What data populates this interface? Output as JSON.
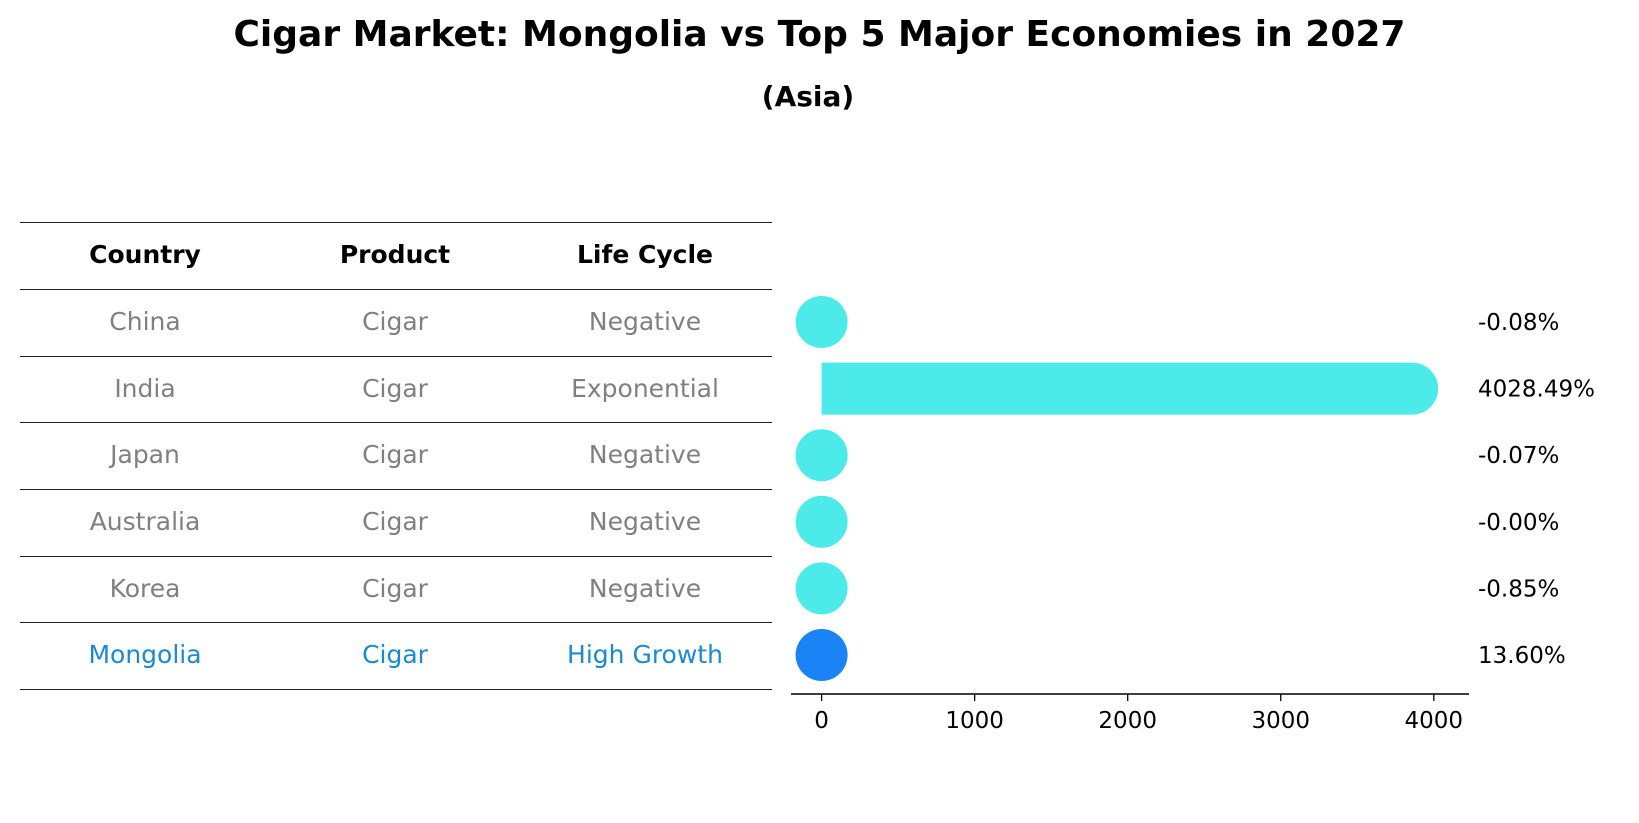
{
  "title": "Cigar Market: Mongolia vs Top 5 Major Economies in 2027",
  "subtitle": "(Asia)",
  "table": {
    "headers": [
      "Country",
      "Product",
      "Life Cycle"
    ],
    "rows": [
      [
        "China",
        "Cigar",
        "Negative"
      ],
      [
        "India",
        "Cigar",
        "Exponential"
      ],
      [
        "Japan",
        "Cigar",
        "Negative"
      ],
      [
        "Australia",
        "Cigar",
        "Negative"
      ],
      [
        "Korea",
        "Cigar",
        "Negative"
      ],
      [
        "Mongolia",
        "Cigar",
        "High Growth"
      ]
    ],
    "highlight_row": "Mongolia",
    "colors": {
      "header": "#000000",
      "normal": "#808080",
      "highlight": "#1a8ad8"
    }
  },
  "chart_data": {
    "type": "bar",
    "orientation": "horizontal",
    "categories": [
      "China",
      "India",
      "Japan",
      "Australia",
      "Korea",
      "Mongolia"
    ],
    "values": [
      -0.08,
      4028.49,
      -0.07,
      -0.0,
      -0.85,
      13.6
    ],
    "value_labels": [
      "-0.08%",
      "4028.49%",
      "-0.07%",
      "-0.00%",
      "-0.85%",
      "13.60%"
    ],
    "xlim": [
      -200,
      4230
    ],
    "xticks": [
      0,
      1000,
      2000,
      3000,
      4000
    ],
    "bar_colors": [
      "#4deaea",
      "#4deaea",
      "#4deaea",
      "#4deaea",
      "#4deaea",
      "#1a83f5"
    ],
    "grid": false,
    "legend": "none"
  }
}
